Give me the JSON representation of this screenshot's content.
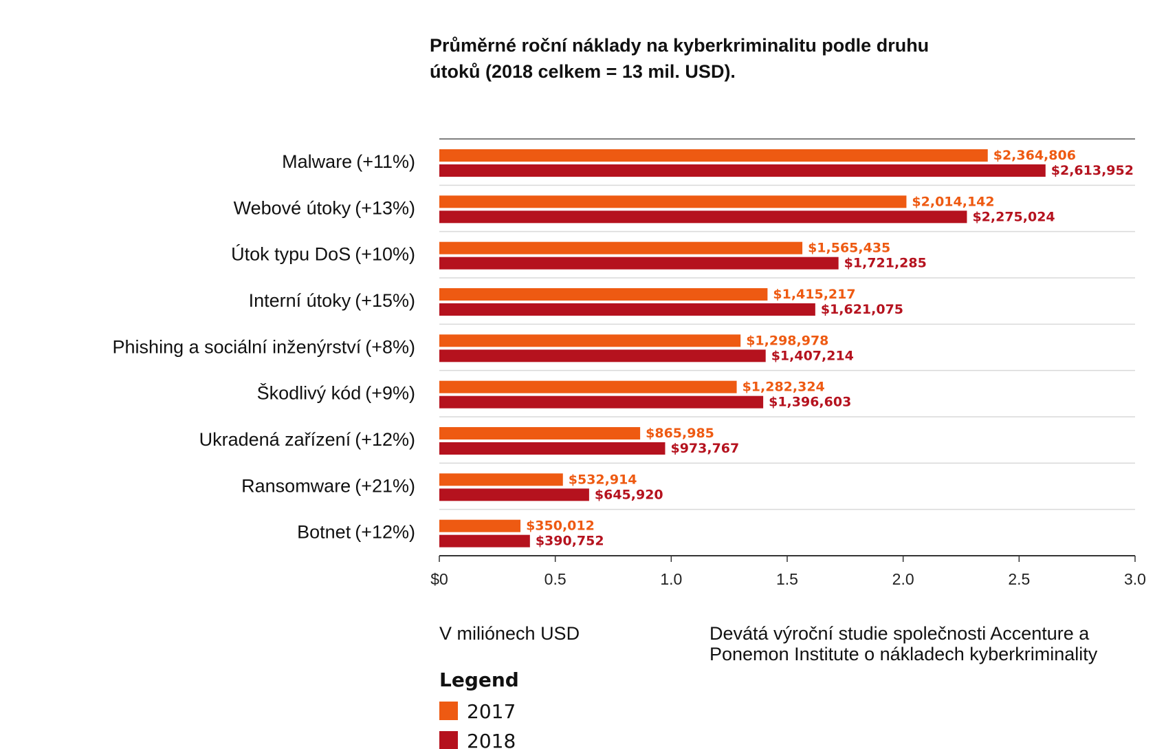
{
  "chart_data": {
    "type": "bar",
    "orientation": "horizontal",
    "title_lines": [
      "Průměrné roční náklady na kyberkriminalitu podle druhu",
      "útoků (2018 celkem = 13 mil. USD)."
    ],
    "categories": [
      "Malware",
      "Webové útoky",
      "Útok typu DoS",
      "Interní útoky",
      "Phishing a sociální inženýrství",
      "Škodlivý kód",
      "Ukradená zařízení",
      "Ransomware",
      "Botnet"
    ],
    "changes": [
      "(+11%)",
      "(+13%)",
      "(+10%)",
      "(+15%)",
      "(+8%)",
      "(+9%)",
      "(+12%)",
      "(+21%)",
      "(+12%)"
    ],
    "series": [
      {
        "name": "2017",
        "color": "#EE5A12",
        "values": [
          2364806,
          2014142,
          1565435,
          1415217,
          1298978,
          1282324,
          865985,
          532914,
          350012
        ],
        "labels": [
          "$2,364,806",
          "$2,014,142",
          "$1,565,435",
          "$1,415,217",
          "$1,298,978",
          "$1,282,324",
          "$865,985",
          "$532,914",
          "$350,012"
        ]
      },
      {
        "name": "2018",
        "color": "#B5121E",
        "values": [
          2613952,
          2275024,
          1721285,
          1621075,
          1407214,
          1396603,
          973767,
          645920,
          390752
        ],
        "labels": [
          "$2,613,952",
          "$2,275,024",
          "$1,721,285",
          "$1,621,075",
          "$1,407,214",
          "$1,396,603",
          "$973,767",
          "$645,920",
          "$390,752"
        ]
      }
    ],
    "x_axis": {
      "ticks": [
        0,
        0.5,
        1.0,
        1.5,
        2.0,
        2.5,
        3.0
      ],
      "tick_labels": [
        "$0",
        "0.5",
        "1.0",
        "1.5",
        "2.0",
        "2.5",
        "3.0"
      ],
      "xlim": [
        0,
        3.0
      ],
      "unit_divisor": 1000000,
      "xlabel": "V miliónech USD"
    },
    "source_lines": [
      "Devátá výroční studie společnosti Accenture a",
      "Ponemon Institute o nákladech kyberkriminality"
    ],
    "legend": {
      "title": "Legend",
      "entries": [
        "2017",
        "2018"
      ]
    },
    "grid_color": "#d9d9d9",
    "axis_color": "#333333"
  }
}
